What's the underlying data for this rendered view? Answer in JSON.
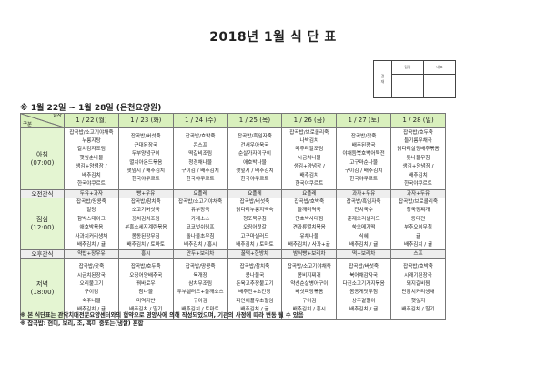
{
  "title": "2018년 1월 식 단 표",
  "approval": {
    "label": "결\n재",
    "cols": [
      "담당",
      "대표"
    ]
  },
  "period": "※ 1월 22일 ~ 1월 28일 (은천요양원)",
  "header": {
    "date_label": "일자",
    "type_label": "구분"
  },
  "days": [
    "1 / 22 (월)",
    "1 / 23 (화)",
    "1 / 24 (수)",
    "1 / 25 (목)",
    "1 / 26 (금)",
    "1 / 27 (토)",
    "1 / 28 (일)"
  ],
  "rows": [
    {
      "label": [
        "아침",
        "(07:00)"
      ],
      "type": "meal",
      "cells": [
        [
          "잡곡밥/소고기야채죽",
          "누룽지탕",
          "갈치감자조림",
          "햇잎순나물",
          "생김+양념장 /",
          "배추김치",
          "한국야쿠르트"
        ],
        [
          "잡곡밥/버섯죽",
          "근대된장국",
          "두부양념구이",
          "멸치아몬드볶음",
          "햇잎지 / 배추김치",
          "한국야쿠르트"
        ],
        [
          "잡곡밥/호박죽",
          "콘스프",
          "떡갈비조림",
          "청경채나물",
          "구이김 / 배추김치",
          "한국야쿠르트"
        ],
        [
          "잡곡밥/흑임자죽",
          "건새우아욱국",
          "순살가자미구이",
          "애호박나물",
          "햇잎지 / 배추김치",
          "한국야쿠르트"
        ],
        [
          "잡곡밥/브로콜리죽",
          "나박김치",
          "메추리알조림",
          "시금치나물",
          "생김+양념장 /",
          "배추김치",
          "한국야쿠르트"
        ],
        [
          "잡곡밥/잣죽",
          "배추된장국",
          "야채듬뿍호박어묵전",
          "고구마순나물",
          "구이김 / 배추김치",
          "한국야쿠르트"
        ],
        [
          "잡곡밥/호두죽",
          "들기름무채국",
          "닭다리살양배추볶음",
          "톳나물무침",
          "생김+양념장 /",
          "배추김치",
          "한국야쿠르트"
        ]
      ]
    },
    {
      "label": [
        "오전간식"
      ],
      "type": "snack",
      "cells": [
        [
          "두유+과자"
        ],
        [
          "빵+우유"
        ],
        [
          "요플레"
        ],
        [
          "요플레"
        ],
        [
          "요플레"
        ],
        [
          "과자+두유"
        ],
        [
          "과자+두유"
        ]
      ]
    },
    {
      "label": [
        "점심",
        "(12:00)"
      ],
      "type": "meal",
      "cells": [
        [
          "잡곡밥/땅콩죽",
          "알탕",
          "함박스테이크",
          "애호박볶음",
          "사과치커리생채",
          "배추김치 / 귤"
        ],
        [
          "잡곡밥/참치죽",
          "소고기버섯국",
          "꽁치김치조림",
          "분홍소세지계란볶음",
          "봄동된장무침",
          "배추김치 / 토마토"
        ],
        [
          "잡곡밥/소고기야채죽",
          "유부장국",
          "카레소스",
          "코코넛쉬림프",
          "돌나물초무침",
          "배추김치 / 홍시"
        ],
        [
          "잡곡밥/버섯죽",
          "닭다리누룽지백숙",
          "청포묵무침",
          "오징어젓갈",
          "고구마샐러드",
          "배추김치 / 토마토"
        ],
        [
          "잡곡밥/호박죽",
          "들깨미역국",
          "단호박사태찜",
          "견과류멸치볶음",
          "유채나물",
          "배추김치 / 사과+귤"
        ],
        [
          "잡곡밥/흑임자죽",
          "잔치국수",
          "훈제오리샐러드",
          "쑥오메기떡",
          "식혜",
          "배추김치 / 귤"
        ],
        [
          "잡곡밥/브로콜리죽",
          "청국장찌개",
          "동태전",
          "부추오이무침",
          "귤",
          "배추김치 / 귤"
        ]
      ]
    },
    {
      "label": [
        "오후간식"
      ],
      "type": "snack",
      "cells": [
        [
          "약밥+장우유"
        ],
        [
          "홍시"
        ],
        [
          "만두+보리차"
        ],
        [
          "꿀떡+한방차"
        ],
        [
          "밤식빵+보리차"
        ],
        [
          "떡+보리차"
        ],
        [
          "스프"
        ]
      ]
    },
    {
      "label": [
        "저녁",
        "(18:00)"
      ],
      "type": "meal",
      "cells": [
        [
          "잡곡밥/잣죽",
          "시금치된장국",
          "오리불고기",
          "구이김",
          "숙주나물",
          "배추김치 / 귤"
        ],
        [
          "잡곡밥/호두죽",
          "오징어양배추국",
          "꿔바로우",
          "참나물",
          "미역자반",
          "배추김치 / 딸기"
        ],
        [
          "잡곡밥/땅콩죽",
          "육개장",
          "삼치무조림",
          "두부샐러드+들깨소스",
          "구이김",
          "배추김치 / 토마토"
        ],
        [
          "잡곡밥/참치죽",
          "콩나물국",
          "돈육고추장불고기",
          "배추전+초간장",
          "파인애플무초절임",
          "배추김치 / 귤"
        ],
        [
          "잡곡밥/소고기야채죽",
          "콩비지찌개",
          "약선순살병어구이",
          "버섯피망볶음",
          "구이김",
          "배추김치 / 홍시"
        ],
        [
          "잡곡밥/버섯죽",
          "북어채감자국",
          "다진소고기가지볶음",
          "봄동게맛무침",
          "상추겉절이",
          "배추김치 / 귤"
        ],
        [
          "잡곡밥/호박죽",
          "시래기된장국",
          "돼지갈비찜",
          "단감치커리생채",
          "햇잎지",
          "배추김치 / 딸기"
        ]
      ]
    }
  ],
  "notes": [
    "※ 본 식단표는 관악치매전문요양센터와의 협약으로 영양사에 의해 작성되었으며, 기관의 사정에 따라 변동 될 수 있음",
    "※ 잡곡밥: 현미, 보리, 조, 흑미 중또는(냉쌀) 혼합"
  ],
  "colors": {
    "header_bg": "#d9f0bd",
    "label_bg": "#e4f5d2",
    "snack_bg": "#eeeeee"
  }
}
